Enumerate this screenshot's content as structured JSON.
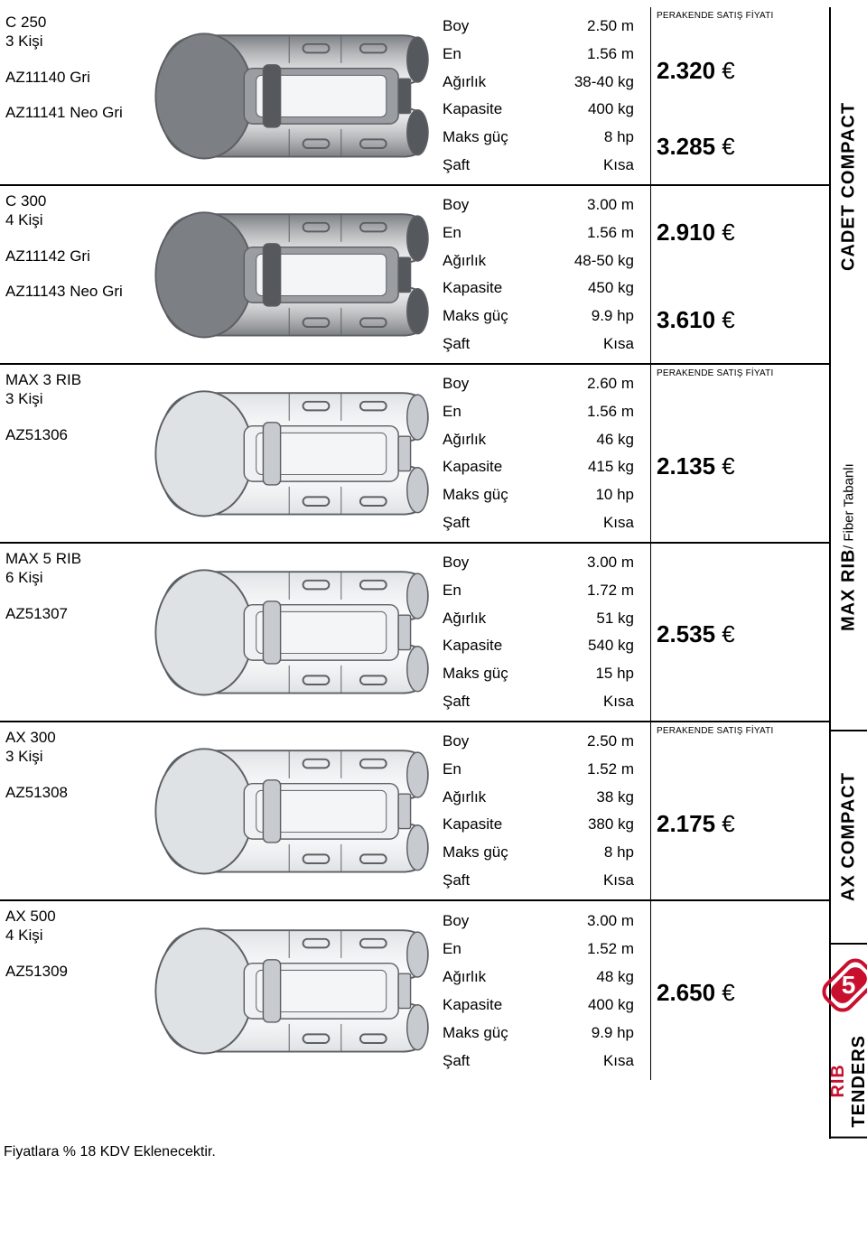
{
  "colors": {
    "text": "#000000",
    "accent": "#c8102e",
    "boat_gray": "#b7b9bc",
    "boat_dark": "#7c7f83",
    "boat_light": "#dfe2e5",
    "stroke": "#5c5f63"
  },
  "spec_labels": {
    "boy": "Boy",
    "en": "En",
    "agirlik": "Ağırlık",
    "kapasite": "Kapasite",
    "maks_guc": "Maks güç",
    "saft": "Şaft"
  },
  "price_header": "PERAKENDE SATIŞ FİYATI",
  "currency": "€",
  "footer": "Fiyatlara % 18 KDV Eklenecektir.",
  "side_tabs": {
    "cadet": "CADET COMPACT",
    "max_main": "MAX RIB",
    "max_sub": " / Fiber Tabanlı",
    "ax": "AX COMPACT",
    "rib_red": "RIB",
    "rib_rest": " TENDERS",
    "badge_num": "5"
  },
  "rows": [
    {
      "model": "C 250",
      "persons": "3 Kişi",
      "codes": [
        "AZ11140 Gri",
        "AZ11141 Neo Gri"
      ],
      "specs": {
        "boy": "2.50 m",
        "en": "1.56 m",
        "agirlik": "38-40 kg",
        "kapasite": "400 kg",
        "maks_guc": "8 hp",
        "saft": "Kısa"
      },
      "prices": [
        "2.320",
        "3.285"
      ],
      "show_price_header": true,
      "boat_style": "dark"
    },
    {
      "model": "C 300",
      "persons": "4 Kişi",
      "codes": [
        "AZ11142 Gri",
        "AZ11143 Neo Gri"
      ],
      "specs": {
        "boy": "3.00 m",
        "en": "1.56 m",
        "agirlik": "48-50 kg",
        "kapasite": "450 kg",
        "maks_guc": "9.9 hp",
        "saft": "Kısa"
      },
      "prices": [
        "2.910",
        "3.610"
      ],
      "show_price_header": false,
      "boat_style": "dark"
    },
    {
      "model": "MAX 3 RIB",
      "persons": "3 Kişi",
      "codes": [
        "AZ51306"
      ],
      "specs": {
        "boy": "2.60 m",
        "en": "1.56 m",
        "agirlik": "46 kg",
        "kapasite": "415 kg",
        "maks_guc": "10 hp",
        "saft": "Kısa"
      },
      "prices": [
        "2.135"
      ],
      "show_price_header": true,
      "boat_style": "light"
    },
    {
      "model": "MAX 5 RIB",
      "persons": "6 Kişi",
      "codes": [
        "AZ51307"
      ],
      "specs": {
        "boy": "3.00 m",
        "en": "1.72 m",
        "agirlik": "51 kg",
        "kapasite": "540 kg",
        "maks_guc": "15 hp",
        "saft": "Kısa"
      },
      "prices": [
        "2.535"
      ],
      "show_price_header": false,
      "boat_style": "light"
    },
    {
      "model": "AX 300",
      "persons": "3 Kişi",
      "codes": [
        "AZ51308"
      ],
      "specs": {
        "boy": "2.50 m",
        "en": "1.52 m",
        "agirlik": "38 kg",
        "kapasite": "380 kg",
        "maks_guc": "8 hp",
        "saft": "Kısa"
      },
      "prices": [
        "2.175"
      ],
      "show_price_header": true,
      "boat_style": "light"
    },
    {
      "model": "AX 500",
      "persons": "4 Kişi",
      "codes": [
        "AZ51309"
      ],
      "specs": {
        "boy": "3.00 m",
        "en": "1.52 m",
        "agirlik": "48 kg",
        "kapasite": "400 kg",
        "maks_guc": "9.9 hp",
        "saft": "Kısa"
      },
      "prices": [
        "2.650"
      ],
      "show_price_header": false,
      "boat_style": "light"
    }
  ]
}
